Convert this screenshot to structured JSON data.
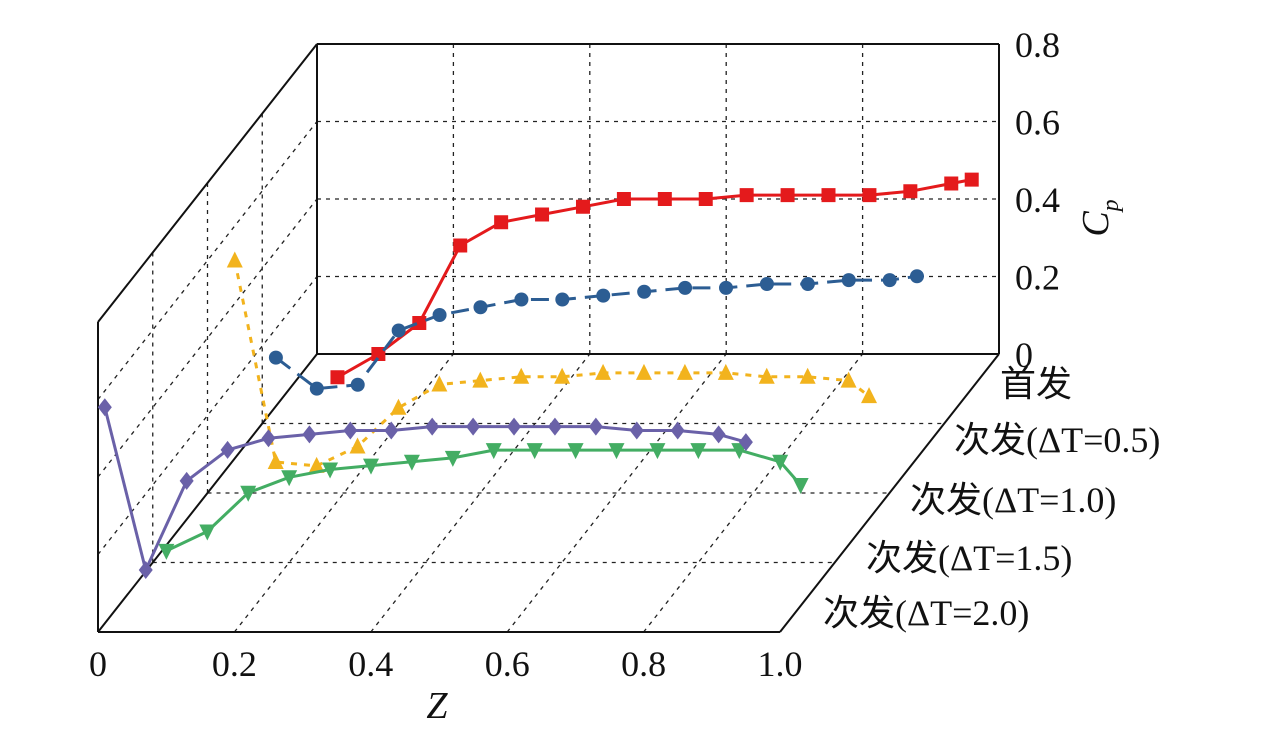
{
  "chart_data": {
    "type": "line",
    "subtype": "3d-waterfall",
    "xlabel": "Z",
    "zlabel_base": "C",
    "zlabel_sub": "p",
    "ylabel": "",
    "xlim": [
      0,
      1.0
    ],
    "zlim": [
      0,
      0.8
    ],
    "x_ticks": [
      "0",
      "0.2",
      "0.4",
      "0.6",
      "0.8",
      "1.0"
    ],
    "z_ticks": [
      "0",
      "0.2",
      "0.4",
      "0.6",
      "0.8"
    ],
    "grid": true,
    "series": [
      {
        "name": "首发",
        "color": "#e41a1c",
        "marker": "square",
        "line": "solid",
        "x": [
          0.03,
          0.09,
          0.15,
          0.21,
          0.27,
          0.33,
          0.39,
          0.45,
          0.51,
          0.57,
          0.63,
          0.69,
          0.75,
          0.81,
          0.87,
          0.93,
          0.96
        ],
        "y": [
          -0.06,
          0.0,
          0.08,
          0.28,
          0.34,
          0.36,
          0.38,
          0.4,
          0.4,
          0.4,
          0.41,
          0.41,
          0.41,
          0.41,
          0.42,
          0.44,
          0.45
        ]
      },
      {
        "name": "次发(ΔT=0.5)",
        "color": "#2c5d93",
        "marker": "circle",
        "line": "dashed",
        "x": [
          0.02,
          0.08,
          0.14,
          0.2,
          0.26,
          0.32,
          0.38,
          0.44,
          0.5,
          0.56,
          0.62,
          0.68,
          0.74,
          0.8,
          0.86,
          0.92,
          0.96
        ],
        "y": [
          0.17,
          0.09,
          0.1,
          0.24,
          0.28,
          0.3,
          0.32,
          0.32,
          0.33,
          0.34,
          0.35,
          0.35,
          0.36,
          0.36,
          0.37,
          0.37,
          0.38
        ]
      },
      {
        "name": "次发(ΔT=1.0)",
        "color": "#f2b31d",
        "marker": "triangle-up",
        "line": "dotted",
        "x": [
          0.04,
          0.1,
          0.16,
          0.22,
          0.28,
          0.34,
          0.4,
          0.46,
          0.52,
          0.58,
          0.64,
          0.7,
          0.76,
          0.82,
          0.88,
          0.94,
          0.97
        ],
        "y": [
          0.6,
          0.08,
          0.07,
          0.12,
          0.22,
          0.28,
          0.29,
          0.3,
          0.3,
          0.31,
          0.31,
          0.31,
          0.31,
          0.3,
          0.3,
          0.29,
          0.25
        ]
      },
      {
        "name": "次发(ΔT=1.5)",
        "color": "#43ad63",
        "marker": "triangle-down",
        "line": "solid",
        "x": [
          0.02,
          0.08,
          0.14,
          0.2,
          0.26,
          0.32,
          0.38,
          0.44,
          0.5,
          0.56,
          0.62,
          0.68,
          0.74,
          0.8,
          0.86,
          0.92,
          0.95
        ],
        "y": [
          0.03,
          0.08,
          0.18,
          0.22,
          0.24,
          0.25,
          0.26,
          0.27,
          0.29,
          0.29,
          0.29,
          0.29,
          0.29,
          0.29,
          0.29,
          0.26,
          0.2
        ]
      },
      {
        "name": "次发(ΔT=2.0)",
        "color": "#6a61a8",
        "marker": "diamond",
        "line": "solid",
        "x": [
          0.01,
          0.07,
          0.13,
          0.19,
          0.25,
          0.31,
          0.37,
          0.43,
          0.49,
          0.55,
          0.61,
          0.67,
          0.73,
          0.79,
          0.85,
          0.91,
          0.95
        ],
        "y": [
          0.58,
          0.16,
          0.39,
          0.47,
          0.5,
          0.51,
          0.52,
          0.52,
          0.53,
          0.53,
          0.53,
          0.53,
          0.53,
          0.52,
          0.52,
          0.51,
          0.49
        ]
      }
    ]
  }
}
